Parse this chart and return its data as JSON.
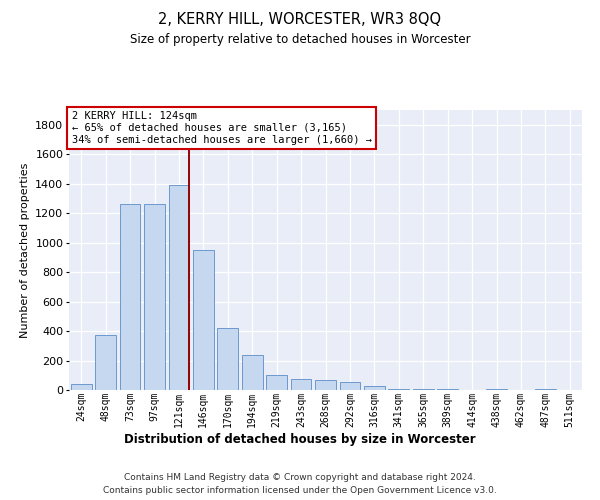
{
  "title": "2, KERRY HILL, WORCESTER, WR3 8QQ",
  "subtitle": "Size of property relative to detached houses in Worcester",
  "xlabel": "Distribution of detached houses by size in Worcester",
  "ylabel": "Number of detached properties",
  "bar_color": "#c5d8f0",
  "bar_edge_color": "#5b8dc8",
  "categories": [
    "24sqm",
    "48sqm",
    "73sqm",
    "97sqm",
    "121sqm",
    "146sqm",
    "170sqm",
    "194sqm",
    "219sqm",
    "243sqm",
    "268sqm",
    "292sqm",
    "316sqm",
    "341sqm",
    "365sqm",
    "389sqm",
    "414sqm",
    "438sqm",
    "462sqm",
    "487sqm",
    "511sqm"
  ],
  "values": [
    40,
    375,
    1260,
    1260,
    1390,
    950,
    420,
    240,
    105,
    75,
    65,
    55,
    30,
    10,
    8,
    5,
    0,
    4,
    0,
    4,
    0
  ],
  "ylim": [
    0,
    1900
  ],
  "yticks": [
    0,
    200,
    400,
    600,
    800,
    1000,
    1200,
    1400,
    1600,
    1800
  ],
  "vline_color": "#990000",
  "annotation_text": "2 KERRY HILL: 124sqm\n← 65% of detached houses are smaller (3,165)\n34% of semi-detached houses are larger (1,660) →",
  "annotation_box_facecolor": "#ffffff",
  "annotation_box_edgecolor": "#cc0000",
  "footnote_line1": "Contains HM Land Registry data © Crown copyright and database right 2024.",
  "footnote_line2": "Contains public sector information licensed under the Open Government Licence v3.0.",
  "bg_color": "#e8edf8"
}
